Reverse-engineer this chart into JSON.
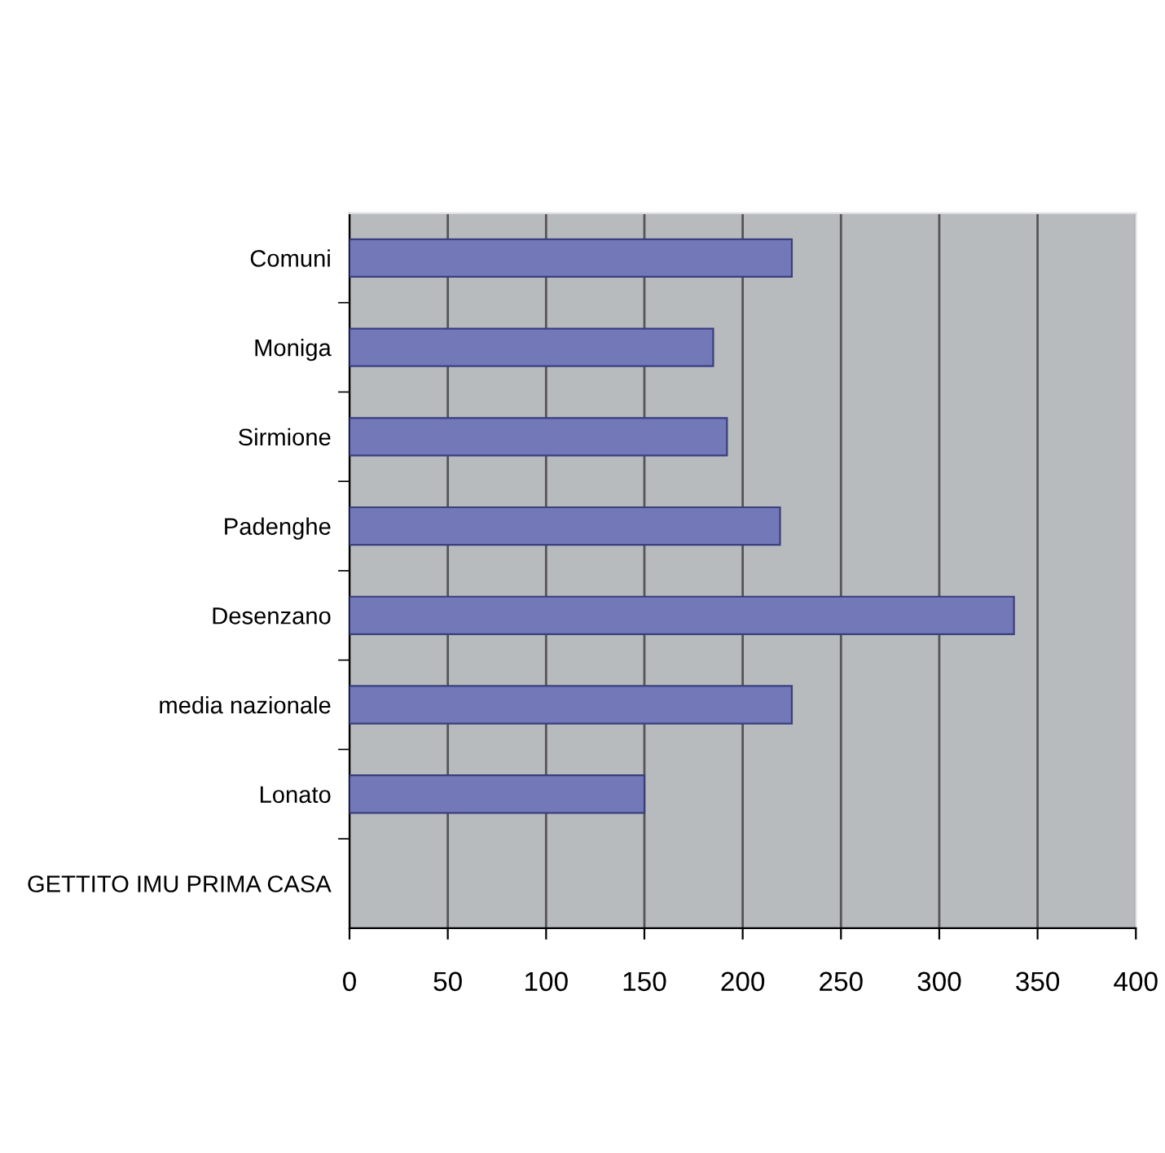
{
  "chart_data": {
    "type": "bar",
    "orientation": "horizontal",
    "categories": [
      "Comuni",
      "Moniga",
      "Sirmione",
      "Padenghe",
      "Desenzano",
      "media nazionale",
      "Lonato",
      "GETTITO IMU PRIMA CASA"
    ],
    "values": [
      225,
      185,
      192,
      219,
      338,
      225,
      150,
      null
    ],
    "color": "#7278b8",
    "xlim": [
      0,
      400
    ],
    "xticks": [
      0,
      50,
      100,
      150,
      200,
      250,
      300,
      350,
      400
    ],
    "grid": "x"
  }
}
